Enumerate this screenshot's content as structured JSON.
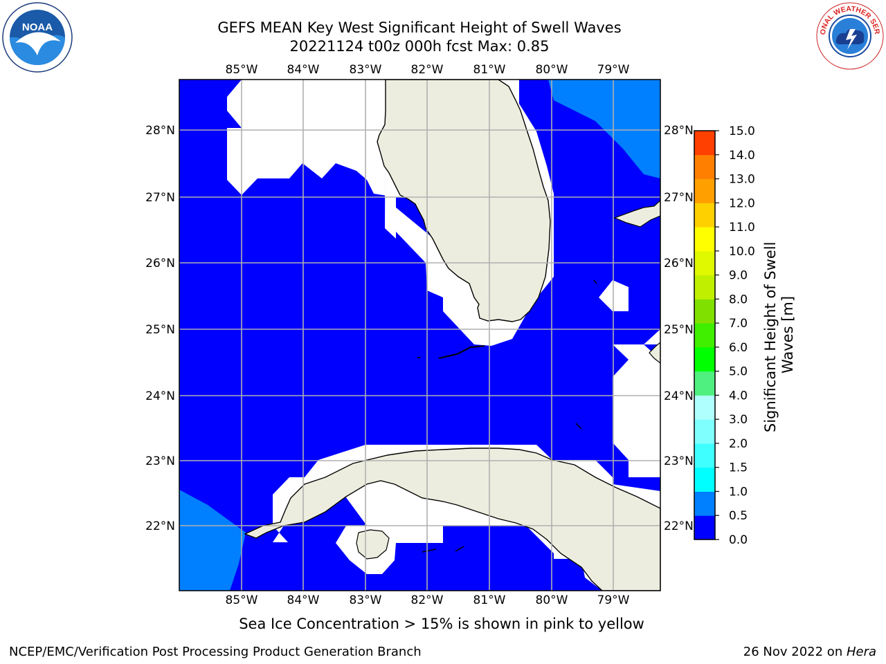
{
  "title": {
    "line1": "GEFS MEAN Key West Significant Height of Swell Waves",
    "line2": "20221124 t00z 000h fcst   Max: 0.85"
  },
  "map": {
    "lon_labels": [
      "85°W",
      "84°W",
      "83°W",
      "82°W",
      "81°W",
      "80°W",
      "79°W"
    ],
    "lat_labels": [
      "28°N",
      "27°N",
      "26°N",
      "25°N",
      "24°N",
      "23°N",
      "22°N"
    ],
    "colors": {
      "ocean_low": "#0000ff",
      "ocean_mid": "#0080ff",
      "land": "#ededdf",
      "grid": "#b0b0b0"
    }
  },
  "colorbar": {
    "title": "Significant Height of Swell Waves [m]",
    "title_line1": "Significant Height of Swell",
    "title_line2": "Waves [m]",
    "ticks": [
      "0.0",
      "0.5",
      "1.0",
      "1.5",
      "2.0",
      "3.0",
      "4.0",
      "5.0",
      "6.0",
      "7.0",
      "8.0",
      "9.0",
      "10.0",
      "11.0",
      "12.0",
      "13.0",
      "14.0",
      "15.0"
    ],
    "colors": [
      "#0000ff",
      "#0080ff",
      "#00ffff",
      "#40ffff",
      "#80ffff",
      "#b0ffff",
      "#50f080",
      "#00ff00",
      "#40ee00",
      "#80e000",
      "#c0f000",
      "#e0f800",
      "#ffff00",
      "#ffd000",
      "#ffa000",
      "#ff8000",
      "#ff4000",
      "#ff0000"
    ]
  },
  "ice_note": "Sea Ice Concentration > 15% is shown in pink to yellow",
  "footer": {
    "left": "NCEP/EMC/Verification Post Processing Product Generation Branch",
    "right_prefix": "26 Nov 2022 on ",
    "right_machine": "Hera"
  },
  "logos": {
    "noaa_text": "NOAA",
    "nws_text": "NATIONAL WEATHER SERVICE"
  }
}
